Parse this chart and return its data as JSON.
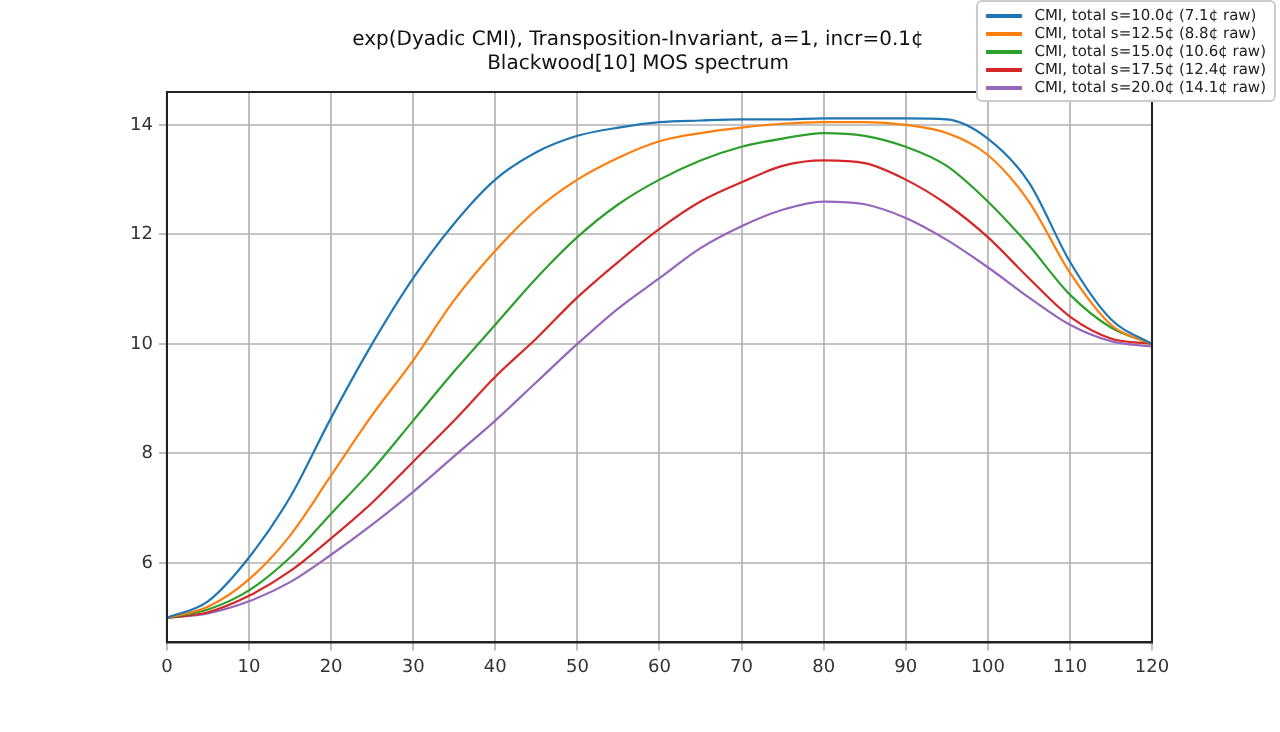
{
  "chart_data": {
    "type": "line",
    "title": "exp(Dyadic CMI), Transposition-Invariant, a=1, incr=0.1¢\nBlackwood[10] MOS spectrum",
    "x": [
      0,
      5,
      10,
      15,
      20,
      25,
      30,
      35,
      40,
      45,
      50,
      55,
      60,
      65,
      70,
      75,
      80,
      85,
      90,
      95,
      100,
      105,
      110,
      115,
      120
    ],
    "series": [
      {
        "name": "CMI, total s=10.0¢ (7.1¢ raw)",
        "color": "#1f77b4",
        "values": [
          5.0,
          5.3,
          6.1,
          7.2,
          8.65,
          10.0,
          11.2,
          12.2,
          13.0,
          13.5,
          13.8,
          13.95,
          14.05,
          14.08,
          14.1,
          14.1,
          14.12,
          14.12,
          14.12,
          14.1,
          13.75,
          12.95,
          11.5,
          10.45,
          10.0
        ]
      },
      {
        "name": "CMI, total s=12.5¢ (8.8¢ raw)",
        "color": "#ff7f0e",
        "values": [
          5.0,
          5.2,
          5.7,
          6.5,
          7.6,
          8.7,
          9.7,
          10.8,
          11.7,
          12.45,
          13.0,
          13.4,
          13.7,
          13.85,
          13.95,
          14.02,
          14.05,
          14.05,
          14.0,
          13.85,
          13.45,
          12.6,
          11.3,
          10.35,
          10.0
        ]
      },
      {
        "name": "CMI, total s=15.0¢ (10.6¢ raw)",
        "color": "#2ca02c",
        "values": [
          5.0,
          5.15,
          5.5,
          6.1,
          6.9,
          7.7,
          8.6,
          9.5,
          10.35,
          11.2,
          11.95,
          12.55,
          13.0,
          13.35,
          13.6,
          13.75,
          13.85,
          13.8,
          13.6,
          13.25,
          12.6,
          11.8,
          10.9,
          10.3,
          10.0
        ]
      },
      {
        "name": "CMI, total s=17.5¢ (12.4¢ raw)",
        "color": "#d62728",
        "values": [
          5.0,
          5.1,
          5.4,
          5.85,
          6.45,
          7.1,
          7.85,
          8.6,
          9.4,
          10.1,
          10.85,
          11.5,
          12.1,
          12.6,
          12.95,
          13.25,
          13.35,
          13.3,
          13.0,
          12.55,
          11.95,
          11.2,
          10.5,
          10.1,
          10.0
        ]
      },
      {
        "name": "CMI, total s=20.0¢ (14.1¢ raw)",
        "color": "#9467bd",
        "values": [
          5.0,
          5.08,
          5.3,
          5.65,
          6.15,
          6.7,
          7.3,
          7.95,
          8.6,
          9.3,
          10.0,
          10.65,
          11.2,
          11.75,
          12.15,
          12.45,
          12.6,
          12.55,
          12.3,
          11.9,
          11.4,
          10.85,
          10.35,
          10.05,
          9.95
        ]
      }
    ],
    "xlim": [
      0,
      120
    ],
    "ylim": [
      4.55,
      14.6
    ],
    "xticks": [
      0,
      10,
      20,
      30,
      40,
      50,
      60,
      70,
      80,
      90,
      100,
      110,
      120
    ],
    "yticks": [
      6,
      8,
      10,
      12,
      14
    ],
    "grid": true,
    "legend": "top right",
    "marker": "none",
    "line_style": "solid"
  }
}
